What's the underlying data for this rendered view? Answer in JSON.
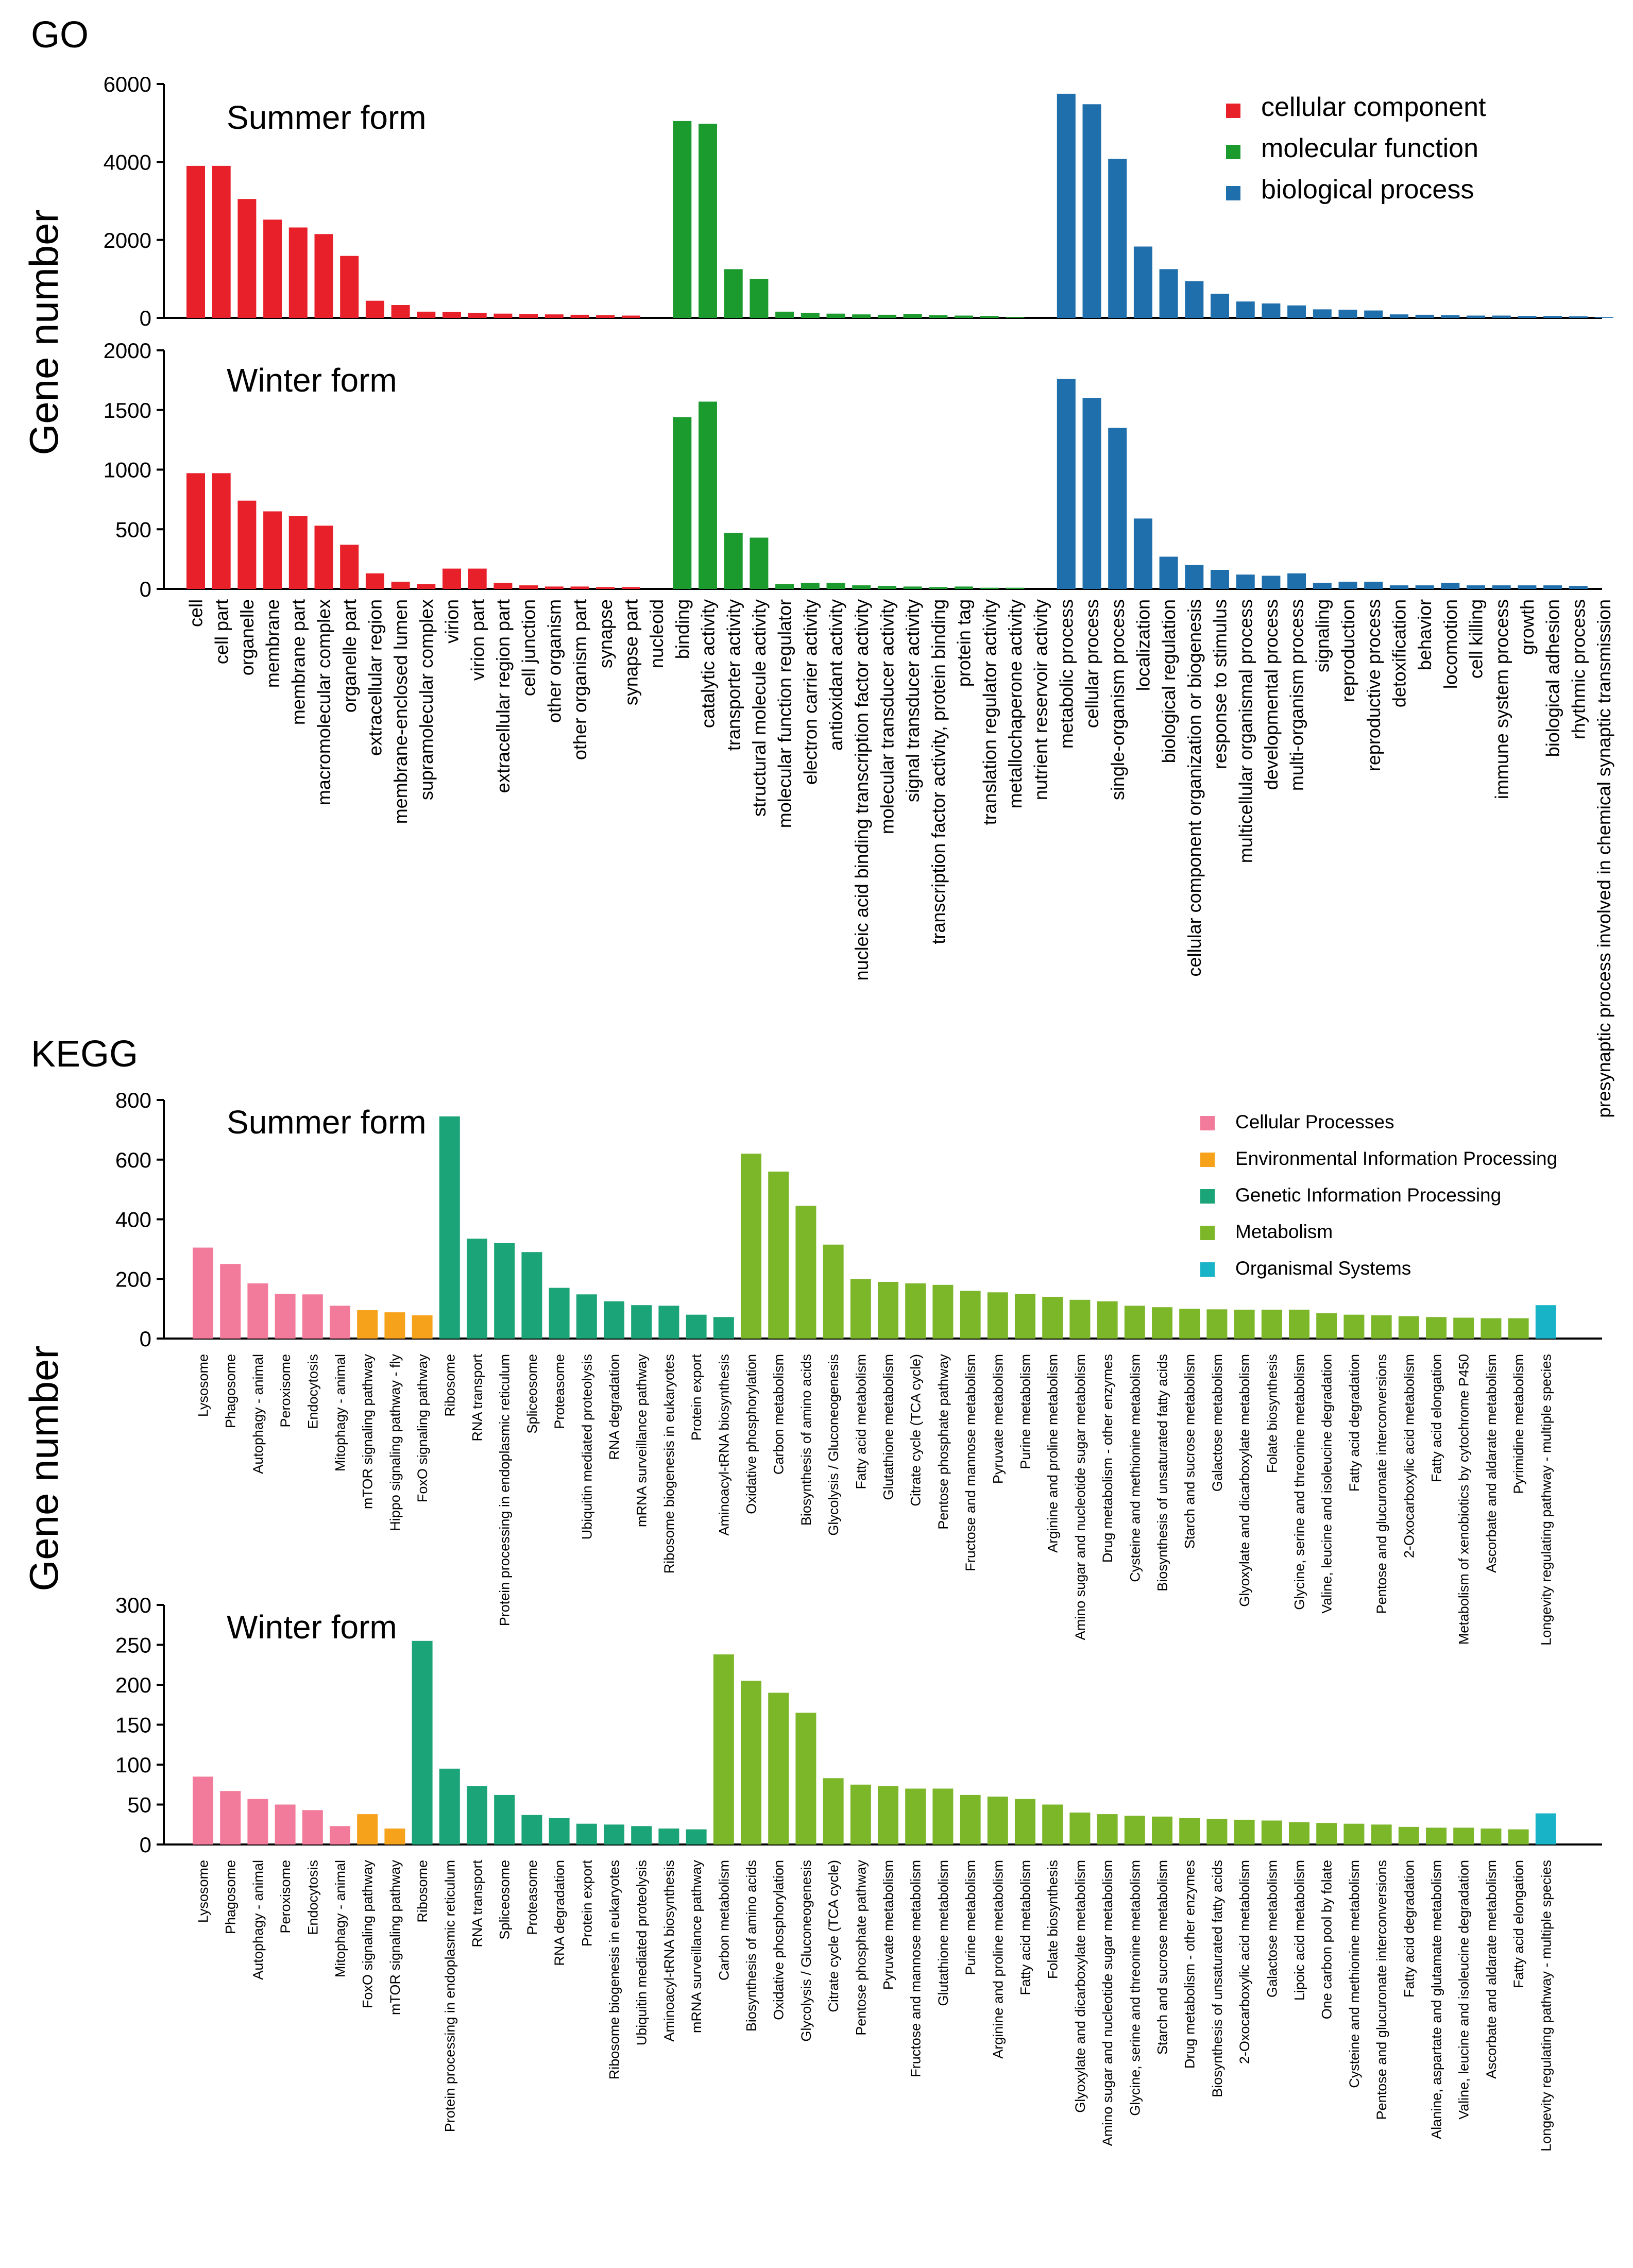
{
  "sections": {
    "go_label": "GO",
    "kegg_label": "KEGG",
    "y_label": "Gene number"
  },
  "colors": {
    "cellular component": "#e8202a",
    "molecular function": "#1b9a2e",
    "biological process": "#1f6fad",
    "Cellular Processes": "#f27a9a",
    "Environmental Information Processing": "#f7a21b",
    "Genetic Information Processing": "#1aa477",
    "Metabolism": "#7cb72a",
    "Organismal Systems": "#19b3c7"
  },
  "chart_data": [
    {
      "id": "go_summer",
      "type": "bar",
      "title": "Summer form",
      "ylabel": "Gene number",
      "ylim": [
        0,
        6000
      ],
      "yticks": [
        0,
        2000,
        4000,
        6000
      ],
      "legend": [
        "cellular component",
        "molecular function",
        "biological process"
      ],
      "categories": [
        "cell",
        "cell part",
        "organelle",
        "membrane",
        "membrane part",
        "macromolecular complex",
        "organelle part",
        "extracellular region",
        "membrane-enclosed lumen",
        "supramolecular complex",
        "virion",
        "virion part",
        "extracellular region part",
        "cell junction",
        "other organism",
        "other organism part",
        "synapse",
        "synapse part",
        "nucleoid",
        "binding",
        "catalytic activity",
        "transporter activity",
        "structural molecule activity",
        "molecular function regulator",
        "electron carrier activity",
        "antioxidant activity",
        "nucleic acid binding transcription factor activity",
        "molecular transducer activity",
        "signal transducer activity",
        "transcription factor activity, protein binding",
        "protein tag",
        "translation regulator activity",
        "metallochaperone activity",
        "nutrient reservoir activity",
        "metabolic process",
        "cellular process",
        "single-organism process",
        "localization",
        "biological regulation",
        "cellular component organization or biogenesis",
        "response to stimulus",
        "multicellular organismal process",
        "developmental process",
        "multi-organism process",
        "signaling",
        "reproduction",
        "reproductive process",
        "detoxification",
        "behavior",
        "locomotion",
        "cell killing",
        "immune system process",
        "growth",
        "biological adhesion",
        "rhythmic process",
        "presynaptic process involved in chemical synaptic transmission"
      ],
      "groups": [
        "cellular component",
        "cellular component",
        "cellular component",
        "cellular component",
        "cellular component",
        "cellular component",
        "cellular component",
        "cellular component",
        "cellular component",
        "cellular component",
        "cellular component",
        "cellular component",
        "cellular component",
        "cellular component",
        "cellular component",
        "cellular component",
        "cellular component",
        "cellular component",
        "cellular component",
        "molecular function",
        "molecular function",
        "molecular function",
        "molecular function",
        "molecular function",
        "molecular function",
        "molecular function",
        "molecular function",
        "molecular function",
        "molecular function",
        "molecular function",
        "molecular function",
        "molecular function",
        "molecular function",
        "molecular function",
        "biological process",
        "biological process",
        "biological process",
        "biological process",
        "biological process",
        "biological process",
        "biological process",
        "biological process",
        "biological process",
        "biological process",
        "biological process",
        "biological process",
        "biological process",
        "biological process",
        "biological process",
        "biological process",
        "biological process",
        "biological process",
        "biological process",
        "biological process",
        "biological process",
        "biological process"
      ],
      "values": [
        3900,
        3900,
        3050,
        2520,
        2320,
        2150,
        1590,
        440,
        330,
        160,
        150,
        130,
        110,
        100,
        90,
        80,
        70,
        60,
        0,
        5050,
        4980,
        1250,
        1000,
        160,
        130,
        110,
        90,
        80,
        100,
        70,
        60,
        50,
        20,
        0,
        5750,
        5480,
        4080,
        1830,
        1250,
        940,
        620,
        420,
        370,
        320,
        220,
        210,
        190,
        90,
        80,
        70,
        60,
        60,
        50,
        50,
        40,
        20
      ]
    },
    {
      "id": "go_winter",
      "type": "bar",
      "title": "Winter form",
      "ylabel": "Gene number",
      "ylim": [
        0,
        2000
      ],
      "yticks": [
        0,
        500,
        1000,
        1500,
        2000
      ],
      "values": [
        970,
        970,
        740,
        650,
        610,
        530,
        370,
        130,
        60,
        40,
        170,
        170,
        50,
        30,
        20,
        20,
        15,
        15,
        0,
        1440,
        1570,
        470,
        430,
        40,
        50,
        50,
        30,
        25,
        20,
        15,
        20,
        10,
        10,
        0,
        1760,
        1600,
        1350,
        590,
        270,
        200,
        160,
        120,
        110,
        130,
        50,
        60,
        60,
        30,
        30,
        50,
        30,
        30,
        30,
        30,
        25,
        0
      ]
    },
    {
      "id": "kegg_summer",
      "type": "bar",
      "title": "Summer form",
      "ylabel": "Gene number",
      "ylim": [
        0,
        800
      ],
      "yticks": [
        0,
        200,
        400,
        600,
        800
      ],
      "legend": [
        "Cellular Processes",
        "Environmental Information Processing",
        "Genetic Information Processing",
        "Metabolism",
        "Organismal Systems"
      ],
      "categories": [
        "Lysosome",
        "Phagosome",
        "Autophagy - animal",
        "Peroxisome",
        "Endocytosis",
        "Mitophagy - animal",
        "mTOR signaling pathway",
        "Hippo signaling pathway - fly",
        "FoxO signaling pathway",
        "Ribosome",
        "RNA transport",
        "Protein processing in endoplasmic reticulum",
        "Spliceosome",
        "Proteasome",
        "Ubiquitin mediated proteolysis",
        "RNA degradation",
        "mRNA surveillance pathway",
        "Ribosome biogenesis in eukaryotes",
        "Protein export",
        "Aminoacyl-tRNA biosynthesis",
        "Oxidative phosphorylation",
        "Carbon metabolism",
        "Biosynthesis of amino acids",
        "Glycolysis / Gluconeogenesis",
        "Fatty acid metabolism",
        "Glutathione metabolism",
        "Citrate cycle (TCA cycle)",
        "Pentose phosphate pathway",
        "Fructose and mannose metabolism",
        "Pyruvate metabolism",
        "Purine metabolism",
        "Arginine and proline metabolism",
        "Amino sugar and nucleotide sugar metabolism",
        "Drug metabolism - other enzymes",
        "Cysteine and methionine metabolism",
        "Biosynthesis of unsaturated fatty acids",
        "Starch and sucrose metabolism",
        "Galactose metabolism",
        "Glyoxylate and dicarboxylate metabolism",
        "Folate biosynthesis",
        "Glycine, serine and threonine metabolism",
        "Valine, leucine and isoleucine degradation",
        "Fatty acid degradation",
        "Pentose and glucuronate interconversions",
        "2-Oxocarboxylic acid metabolism",
        "Fatty acid elongation",
        "Metabolism of xenobiotics by cytochrome P450",
        "Ascorbate and aldarate metabolism",
        "Pyrimidine metabolism",
        "Longevity regulating pathway - multiple species"
      ],
      "groups": [
        "Cellular Processes",
        "Cellular Processes",
        "Cellular Processes",
        "Cellular Processes",
        "Cellular Processes",
        "Cellular Processes",
        "Environmental Information Processing",
        "Environmental Information Processing",
        "Environmental Information Processing",
        "Genetic Information Processing",
        "Genetic Information Processing",
        "Genetic Information Processing",
        "Genetic Information Processing",
        "Genetic Information Processing",
        "Genetic Information Processing",
        "Genetic Information Processing",
        "Genetic Information Processing",
        "Genetic Information Processing",
        "Genetic Information Processing",
        "Genetic Information Processing",
        "Metabolism",
        "Metabolism",
        "Metabolism",
        "Metabolism",
        "Metabolism",
        "Metabolism",
        "Metabolism",
        "Metabolism",
        "Metabolism",
        "Metabolism",
        "Metabolism",
        "Metabolism",
        "Metabolism",
        "Metabolism",
        "Metabolism",
        "Metabolism",
        "Metabolism",
        "Metabolism",
        "Metabolism",
        "Metabolism",
        "Metabolism",
        "Metabolism",
        "Metabolism",
        "Metabolism",
        "Metabolism",
        "Metabolism",
        "Metabolism",
        "Metabolism",
        "Metabolism",
        "Organismal Systems"
      ],
      "values": [
        305,
        250,
        185,
        150,
        148,
        110,
        95,
        88,
        78,
        745,
        335,
        320,
        290,
        170,
        148,
        125,
        112,
        110,
        80,
        72,
        620,
        560,
        445,
        315,
        200,
        190,
        185,
        180,
        160,
        155,
        150,
        140,
        130,
        125,
        110,
        105,
        100,
        98,
        97,
        97,
        97,
        85,
        80,
        78,
        75,
        72,
        70,
        68,
        68,
        112
      ]
    },
    {
      "id": "kegg_winter",
      "type": "bar",
      "title": "Winter form",
      "ylabel": "Gene number",
      "ylim": [
        0,
        300
      ],
      "yticks": [
        0,
        50,
        100,
        150,
        200,
        250,
        300
      ],
      "categories": [
        "Lysosome",
        "Phagosome",
        "Autophagy - animal",
        "Peroxisome",
        "Endocytosis",
        "Mitophagy - animal",
        "FoxO signaling pathway",
        "mTOR signaling pathway",
        "Ribosome",
        "Protein processing in endoplasmic reticulum",
        "RNA transport",
        "Spliceosome",
        "Proteasome",
        "RNA degradation",
        "Protein export",
        "Ribosome biogenesis in eukaryotes",
        "Ubiquitin mediated proteolysis",
        "Aminoacyl-tRNA biosynthesis",
        "mRNA surveillance pathway",
        "Carbon metabolism",
        "Biosynthesis of amino acids",
        "Oxidative phosphorylation",
        "Glycolysis / Gluconeogenesis",
        "Citrate cycle (TCA cycle)",
        "Pentose phosphate pathway",
        "Pyruvate metabolism",
        "Fructose and mannose metabolism",
        "Glutathione metabolism",
        "Purine metabolism",
        "Arginine and proline metabolism",
        "Fatty acid metabolism",
        "Folate biosynthesis",
        "Glyoxylate and dicarboxylate metabolism",
        "Amino sugar and nucleotide sugar metabolism",
        "Glycine, serine and threonine metabolism",
        "Starch and sucrose metabolism",
        "Drug metabolism - other enzymes",
        "Biosynthesis of unsaturated fatty acids",
        "2-Oxocarboxylic acid metabolism",
        "Galactose metabolism",
        "Lipoic acid metabolism",
        "One carbon pool by folate",
        "Cysteine and methionine metabolism",
        "Pentose and glucuronate interconversions",
        "Fatty acid degradation",
        "Alanine, aspartate and glutamate metabolism",
        "Valine, leucine and isoleucine degradation",
        "Ascorbate and aldarate metabolism",
        "Fatty acid elongation",
        "Longevity regulating pathway - multiple species"
      ],
      "groups": [
        "Cellular Processes",
        "Cellular Processes",
        "Cellular Processes",
        "Cellular Processes",
        "Cellular Processes",
        "Cellular Processes",
        "Environmental Information Processing",
        "Environmental Information Processing",
        "Genetic Information Processing",
        "Genetic Information Processing",
        "Genetic Information Processing",
        "Genetic Information Processing",
        "Genetic Information Processing",
        "Genetic Information Processing",
        "Genetic Information Processing",
        "Genetic Information Processing",
        "Genetic Information Processing",
        "Genetic Information Processing",
        "Genetic Information Processing",
        "Metabolism",
        "Metabolism",
        "Metabolism",
        "Metabolism",
        "Metabolism",
        "Metabolism",
        "Metabolism",
        "Metabolism",
        "Metabolism",
        "Metabolism",
        "Metabolism",
        "Metabolism",
        "Metabolism",
        "Metabolism",
        "Metabolism",
        "Metabolism",
        "Metabolism",
        "Metabolism",
        "Metabolism",
        "Metabolism",
        "Metabolism",
        "Metabolism",
        "Metabolism",
        "Metabolism",
        "Metabolism",
        "Metabolism",
        "Metabolism",
        "Metabolism",
        "Metabolism",
        "Metabolism",
        "Organismal Systems"
      ],
      "values": [
        85,
        67,
        57,
        50,
        43,
        23,
        38,
        20,
        255,
        95,
        73,
        62,
        37,
        33,
        26,
        25,
        23,
        20,
        19,
        238,
        205,
        190,
        165,
        83,
        75,
        73,
        70,
        70,
        62,
        60,
        57,
        50,
        40,
        38,
        36,
        35,
        33,
        32,
        31,
        30,
        28,
        27,
        26,
        25,
        22,
        21,
        21,
        20,
        19,
        39
      ]
    }
  ]
}
